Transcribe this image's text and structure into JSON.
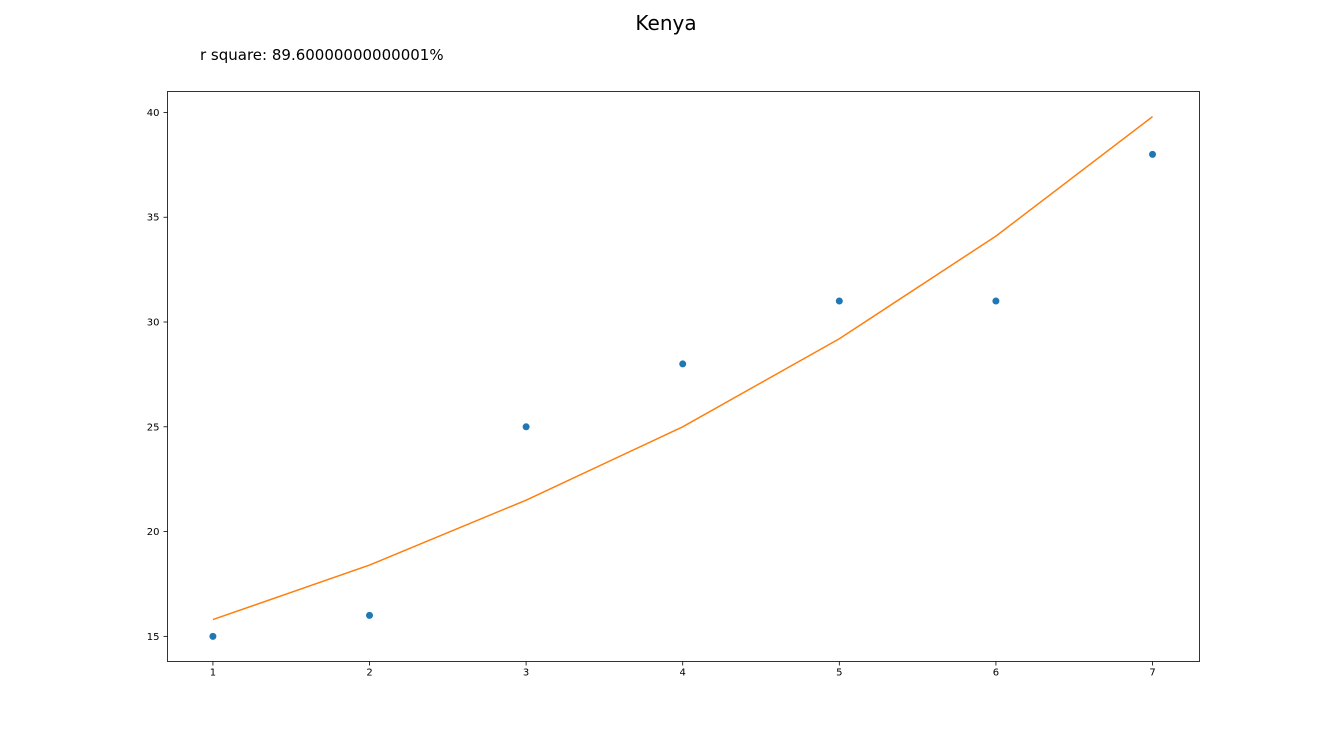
{
  "chart_data": {
    "type": "scatter",
    "title": "Kenya",
    "annotation": "r square: 89.60000000000001%",
    "xlabel": "",
    "ylabel": "",
    "xlim": [
      0.71,
      7.3
    ],
    "ylim": [
      13.8,
      41.0
    ],
    "x_ticks": [
      1,
      2,
      3,
      4,
      5,
      6,
      7
    ],
    "y_ticks": [
      15,
      20,
      25,
      30,
      35,
      40
    ],
    "grid": false,
    "series": [
      {
        "kind": "scatter",
        "color": "#1f77b4",
        "x": [
          1,
          2,
          3,
          4,
          5,
          6,
          7
        ],
        "y": [
          15,
          16,
          25,
          28,
          31,
          31,
          38
        ]
      },
      {
        "kind": "line",
        "color": "#ff7f0e",
        "x": [
          1,
          2,
          3,
          4,
          5,
          6,
          7
        ],
        "y": [
          15.8,
          18.4,
          21.5,
          25.0,
          29.2,
          34.1,
          39.8
        ]
      }
    ]
  }
}
